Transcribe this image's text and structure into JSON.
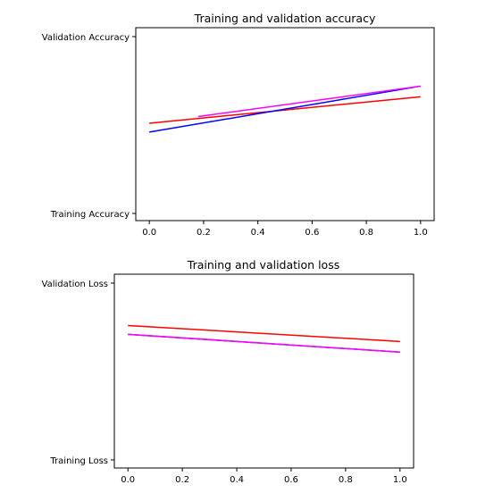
{
  "chart_data": [
    {
      "type": "line",
      "title": "Training and validation accuracy",
      "x_ticks": [
        "0.0",
        "0.2",
        "0.4",
        "0.6",
        "0.8",
        "1.0"
      ],
      "y_ticks": [
        "Training Accuracy",
        "Validation Accuracy"
      ],
      "xlim": [
        -0.05,
        1.05
      ],
      "series": [
        {
          "color": "#ff0000",
          "x": [
            0,
            1
          ],
          "y": [
            0.51,
            0.66
          ]
        },
        {
          "color": "#0000ff",
          "x": [
            0,
            1
          ],
          "y": [
            0.46,
            0.72
          ]
        },
        {
          "color": "#ff00ff",
          "x": [
            0.18,
            1
          ],
          "y": [
            0.548,
            0.72
          ]
        }
      ]
    },
    {
      "type": "line",
      "title": "Training and validation loss",
      "x_ticks": [
        "0.0",
        "0.2",
        "0.4",
        "0.6",
        "0.8",
        "1.0"
      ],
      "y_ticks": [
        "Training Loss",
        "Validation Loss"
      ],
      "xlim": [
        -0.05,
        1.05
      ],
      "series": [
        {
          "color": "#ff0000",
          "x": [
            0,
            1
          ],
          "y": [
            0.76,
            0.67
          ]
        },
        {
          "color": "#0000ff",
          "x": [
            0,
            1
          ],
          "y": [
            0.71,
            0.61
          ]
        },
        {
          "color": "#ff00ff",
          "x": [
            0,
            1
          ],
          "y": [
            0.71,
            0.61
          ]
        }
      ]
    }
  ]
}
